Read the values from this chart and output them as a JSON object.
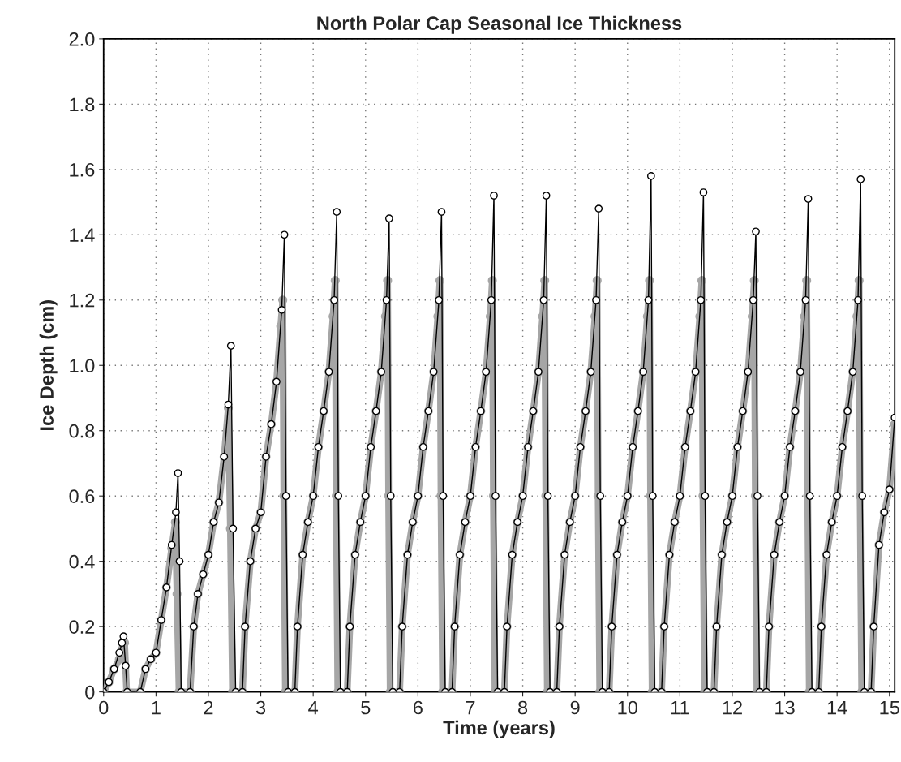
{
  "chart_data": {
    "type": "line",
    "title": "North Polar Cap Seasonal Ice Thickness",
    "xlabel": "Time (years)",
    "ylabel": "Ice Depth (cm)",
    "xlim": [
      0,
      15.1
    ],
    "ylim": [
      0,
      2.0
    ],
    "xticks": [
      0,
      1,
      2,
      3,
      4,
      5,
      6,
      7,
      8,
      9,
      10,
      11,
      12,
      13,
      14,
      15
    ],
    "yticks": [
      0,
      0.2,
      0.4,
      0.6,
      0.8,
      {
        "value": 1,
        "label": "1.0"
      },
      1.2,
      1.4,
      1.6,
      1.8,
      {
        "value": 2,
        "label": "2.0"
      }
    ],
    "grid": true,
    "marker": "circle",
    "series": [
      {
        "color": "#000000",
        "x": [
          0,
          0.1,
          0.2,
          0.3,
          0.35,
          0.38,
          0.42,
          0.45,
          0.7,
          0.8,
          0.9,
          1.0,
          1.1,
          1.2,
          1.3,
          1.38,
          1.42,
          1.45,
          1.48,
          1.65,
          1.72,
          1.8,
          1.9,
          2.0,
          2.1,
          2.2,
          2.3,
          2.38,
          2.43,
          2.47,
          2.52,
          2.65,
          2.7,
          2.8,
          2.9,
          3,
          3.1,
          3.2,
          3.3,
          3.4,
          3.45,
          3.48,
          3.52,
          3.65,
          3.7,
          3.8,
          3.9,
          4,
          4.1,
          4.2,
          4.3,
          4.4,
          4.45,
          4.48,
          4.52,
          4.65,
          4.7,
          4.8,
          4.9,
          5,
          5.1,
          5.2,
          5.3,
          5.4,
          5.45,
          5.48,
          5.52,
          5.65,
          5.7,
          5.8,
          5.9,
          6,
          6.1,
          6.2,
          6.3,
          6.4,
          6.45,
          6.48,
          6.52,
          6.65,
          6.7,
          6.8,
          6.9,
          7,
          7.1,
          7.2,
          7.3,
          7.4,
          7.45,
          7.48,
          7.52,
          7.65,
          7.7,
          7.8,
          7.9,
          8,
          8.1,
          8.2,
          8.3,
          8.4,
          8.45,
          8.48,
          8.52,
          8.65,
          8.7,
          8.8,
          8.9,
          9,
          9.1,
          9.2,
          9.3,
          9.4,
          9.45,
          9.48,
          9.52,
          9.65,
          9.7,
          9.8,
          9.9,
          10,
          10.1,
          10.2,
          10.3,
          10.4,
          10.45,
          10.48,
          10.52,
          10.65,
          10.7,
          10.8,
          10.9,
          11,
          11.1,
          11.2,
          11.3,
          11.4,
          11.45,
          11.48,
          11.52,
          11.65,
          11.7,
          11.8,
          11.9,
          12,
          12.1,
          12.2,
          12.3,
          12.4,
          12.45,
          12.48,
          12.52,
          12.65,
          12.7,
          12.8,
          12.9,
          13,
          13.1,
          13.2,
          13.3,
          13.4,
          13.45,
          13.48,
          13.52,
          13.65,
          13.7,
          13.8,
          13.9,
          14,
          14.1,
          14.2,
          14.3,
          14.4,
          14.45,
          14.48,
          14.52,
          14.65,
          14.7,
          14.8,
          14.9,
          15.0,
          15.1
        ],
        "values": [
          0,
          0.03,
          0.07,
          0.12,
          0.15,
          0.17,
          0.08,
          0,
          0,
          0.07,
          0.1,
          0.12,
          0.22,
          0.32,
          0.45,
          0.55,
          0.67,
          0.4,
          0,
          0,
          0.2,
          0.3,
          0.36,
          0.42,
          0.52,
          0.58,
          0.72,
          0.88,
          1.06,
          0.5,
          0,
          0,
          0.2,
          0.4,
          0.5,
          0.55,
          0.72,
          0.82,
          0.95,
          1.17,
          1.4,
          0.6,
          0,
          0,
          0.2,
          0.42,
          0.52,
          0.6,
          0.75,
          0.86,
          0.98,
          1.2,
          1.47,
          0.6,
          0,
          0,
          0.2,
          0.42,
          0.52,
          0.6,
          0.75,
          0.86,
          0.98,
          1.2,
          1.45,
          0.6,
          0,
          0,
          0.2,
          0.42,
          0.52,
          0.6,
          0.75,
          0.86,
          0.98,
          1.2,
          1.47,
          0.6,
          0,
          0,
          0.2,
          0.42,
          0.52,
          0.6,
          0.75,
          0.86,
          0.98,
          1.2,
          1.52,
          0.6,
          0,
          0,
          0.2,
          0.42,
          0.52,
          0.6,
          0.75,
          0.86,
          0.98,
          1.2,
          1.52,
          0.6,
          0,
          0,
          0.2,
          0.42,
          0.52,
          0.6,
          0.75,
          0.86,
          0.98,
          1.2,
          1.48,
          0.6,
          0,
          0,
          0.2,
          0.42,
          0.52,
          0.6,
          0.75,
          0.86,
          0.98,
          1.2,
          1.58,
          0.6,
          0,
          0,
          0.2,
          0.42,
          0.52,
          0.6,
          0.75,
          0.86,
          0.98,
          1.2,
          1.53,
          0.6,
          0,
          0,
          0.2,
          0.42,
          0.52,
          0.6,
          0.75,
          0.86,
          0.98,
          1.2,
          1.41,
          0.6,
          0,
          0,
          0.2,
          0.42,
          0.52,
          0.6,
          0.75,
          0.86,
          0.98,
          1.2,
          1.51,
          0.6,
          0,
          0,
          0.2,
          0.42,
          0.52,
          0.6,
          0.75,
          0.86,
          0.98,
          1.2,
          1.57,
          0.6,
          0,
          0,
          0.2,
          0.45,
          0.55,
          0.62,
          0.84
        ]
      },
      {
        "color": "#a6a6a6",
        "x": [
          0,
          0.1,
          0.2,
          0.3,
          0.35,
          0.4,
          0.44,
          0.7,
          0.8,
          0.9,
          1.0,
          1.1,
          1.2,
          1.3,
          1.37,
          1.4,
          1.44,
          1.65,
          1.72,
          1.8,
          1.9,
          2.0,
          2.1,
          2.2,
          2.3,
          2.38,
          2.42,
          2.46,
          2.65,
          2.7,
          2.8,
          2.9,
          3,
          3.1,
          3.2,
          3.3,
          3.38,
          3.42,
          3.44,
          3.47,
          3.65,
          3.7,
          3.8,
          3.9,
          4,
          4.1,
          4.2,
          4.3,
          4.38,
          4.42,
          4.44,
          4.47,
          4.65,
          4.7,
          4.8,
          4.9,
          5,
          5.1,
          5.2,
          5.3,
          5.38,
          5.42,
          5.44,
          5.47,
          5.65,
          5.7,
          5.8,
          5.9,
          6,
          6.1,
          6.2,
          6.3,
          6.38,
          6.42,
          6.44,
          6.47,
          6.65,
          6.7,
          6.8,
          6.9,
          7,
          7.1,
          7.2,
          7.3,
          7.38,
          7.42,
          7.44,
          7.47,
          7.65,
          7.7,
          7.8,
          7.9,
          8,
          8.1,
          8.2,
          8.3,
          8.38,
          8.42,
          8.44,
          8.47,
          8.65,
          8.7,
          8.8,
          8.9,
          9,
          9.1,
          9.2,
          9.3,
          9.38,
          9.42,
          9.44,
          9.47,
          9.65,
          9.7,
          9.8,
          9.9,
          10,
          10.1,
          10.2,
          10.3,
          10.38,
          10.42,
          10.44,
          10.47,
          10.65,
          10.7,
          10.8,
          10.9,
          11,
          11.1,
          11.2,
          11.3,
          11.38,
          11.42,
          11.44,
          11.47,
          11.65,
          11.7,
          11.8,
          11.9,
          12,
          12.1,
          12.2,
          12.3,
          12.38,
          12.42,
          12.44,
          12.47,
          12.65,
          12.7,
          12.8,
          12.9,
          13,
          13.1,
          13.2,
          13.3,
          13.38,
          13.42,
          13.44,
          13.47,
          13.65,
          13.7,
          13.8,
          13.9,
          14,
          14.1,
          14.2,
          14.3,
          14.38,
          14.42,
          14.44,
          14.47,
          14.65,
          14.7,
          14.8,
          14.9,
          15.0,
          15.1
        ],
        "values": [
          0,
          0.03,
          0.07,
          0.1,
          0.13,
          0.15,
          0,
          0,
          0.07,
          0.1,
          0.12,
          0.22,
          0.32,
          0.44,
          0.52,
          0.3,
          0,
          0,
          0.2,
          0.3,
          0.36,
          0.42,
          0.52,
          0.58,
          0.72,
          0.87,
          0.5,
          0,
          0,
          0.2,
          0.4,
          0.5,
          0.55,
          0.72,
          0.82,
          0.95,
          1.12,
          1.2,
          0.6,
          0,
          0,
          0.2,
          0.42,
          0.52,
          0.6,
          0.75,
          0.86,
          0.98,
          1.15,
          1.26,
          0.6,
          0,
          0,
          0.2,
          0.42,
          0.52,
          0.6,
          0.75,
          0.86,
          0.98,
          1.15,
          1.26,
          0.6,
          0,
          0,
          0.2,
          0.42,
          0.52,
          0.6,
          0.75,
          0.86,
          0.98,
          1.15,
          1.26,
          0.6,
          0,
          0,
          0.2,
          0.42,
          0.52,
          0.6,
          0.75,
          0.86,
          0.98,
          1.15,
          1.26,
          0.6,
          0,
          0,
          0.2,
          0.42,
          0.52,
          0.6,
          0.75,
          0.86,
          0.98,
          1.15,
          1.26,
          0.6,
          0,
          0,
          0.2,
          0.42,
          0.52,
          0.6,
          0.75,
          0.86,
          0.98,
          1.15,
          1.26,
          0.6,
          0,
          0,
          0.2,
          0.42,
          0.52,
          0.6,
          0.75,
          0.86,
          0.98,
          1.15,
          1.26,
          0.6,
          0,
          0,
          0.2,
          0.42,
          0.52,
          0.6,
          0.75,
          0.86,
          0.98,
          1.15,
          1.26,
          0.6,
          0,
          0,
          0.2,
          0.42,
          0.52,
          0.6,
          0.75,
          0.86,
          0.98,
          1.15,
          1.26,
          0.6,
          0,
          0,
          0.2,
          0.42,
          0.52,
          0.6,
          0.75,
          0.86,
          0.98,
          1.15,
          1.26,
          0.6,
          0,
          0,
          0.2,
          0.42,
          0.52,
          0.6,
          0.75,
          0.86,
          0.98,
          1.15,
          1.26,
          0.6,
          0,
          0,
          0.2,
          0.45,
          0.55,
          0.62,
          0.82
        ]
      }
    ]
  }
}
